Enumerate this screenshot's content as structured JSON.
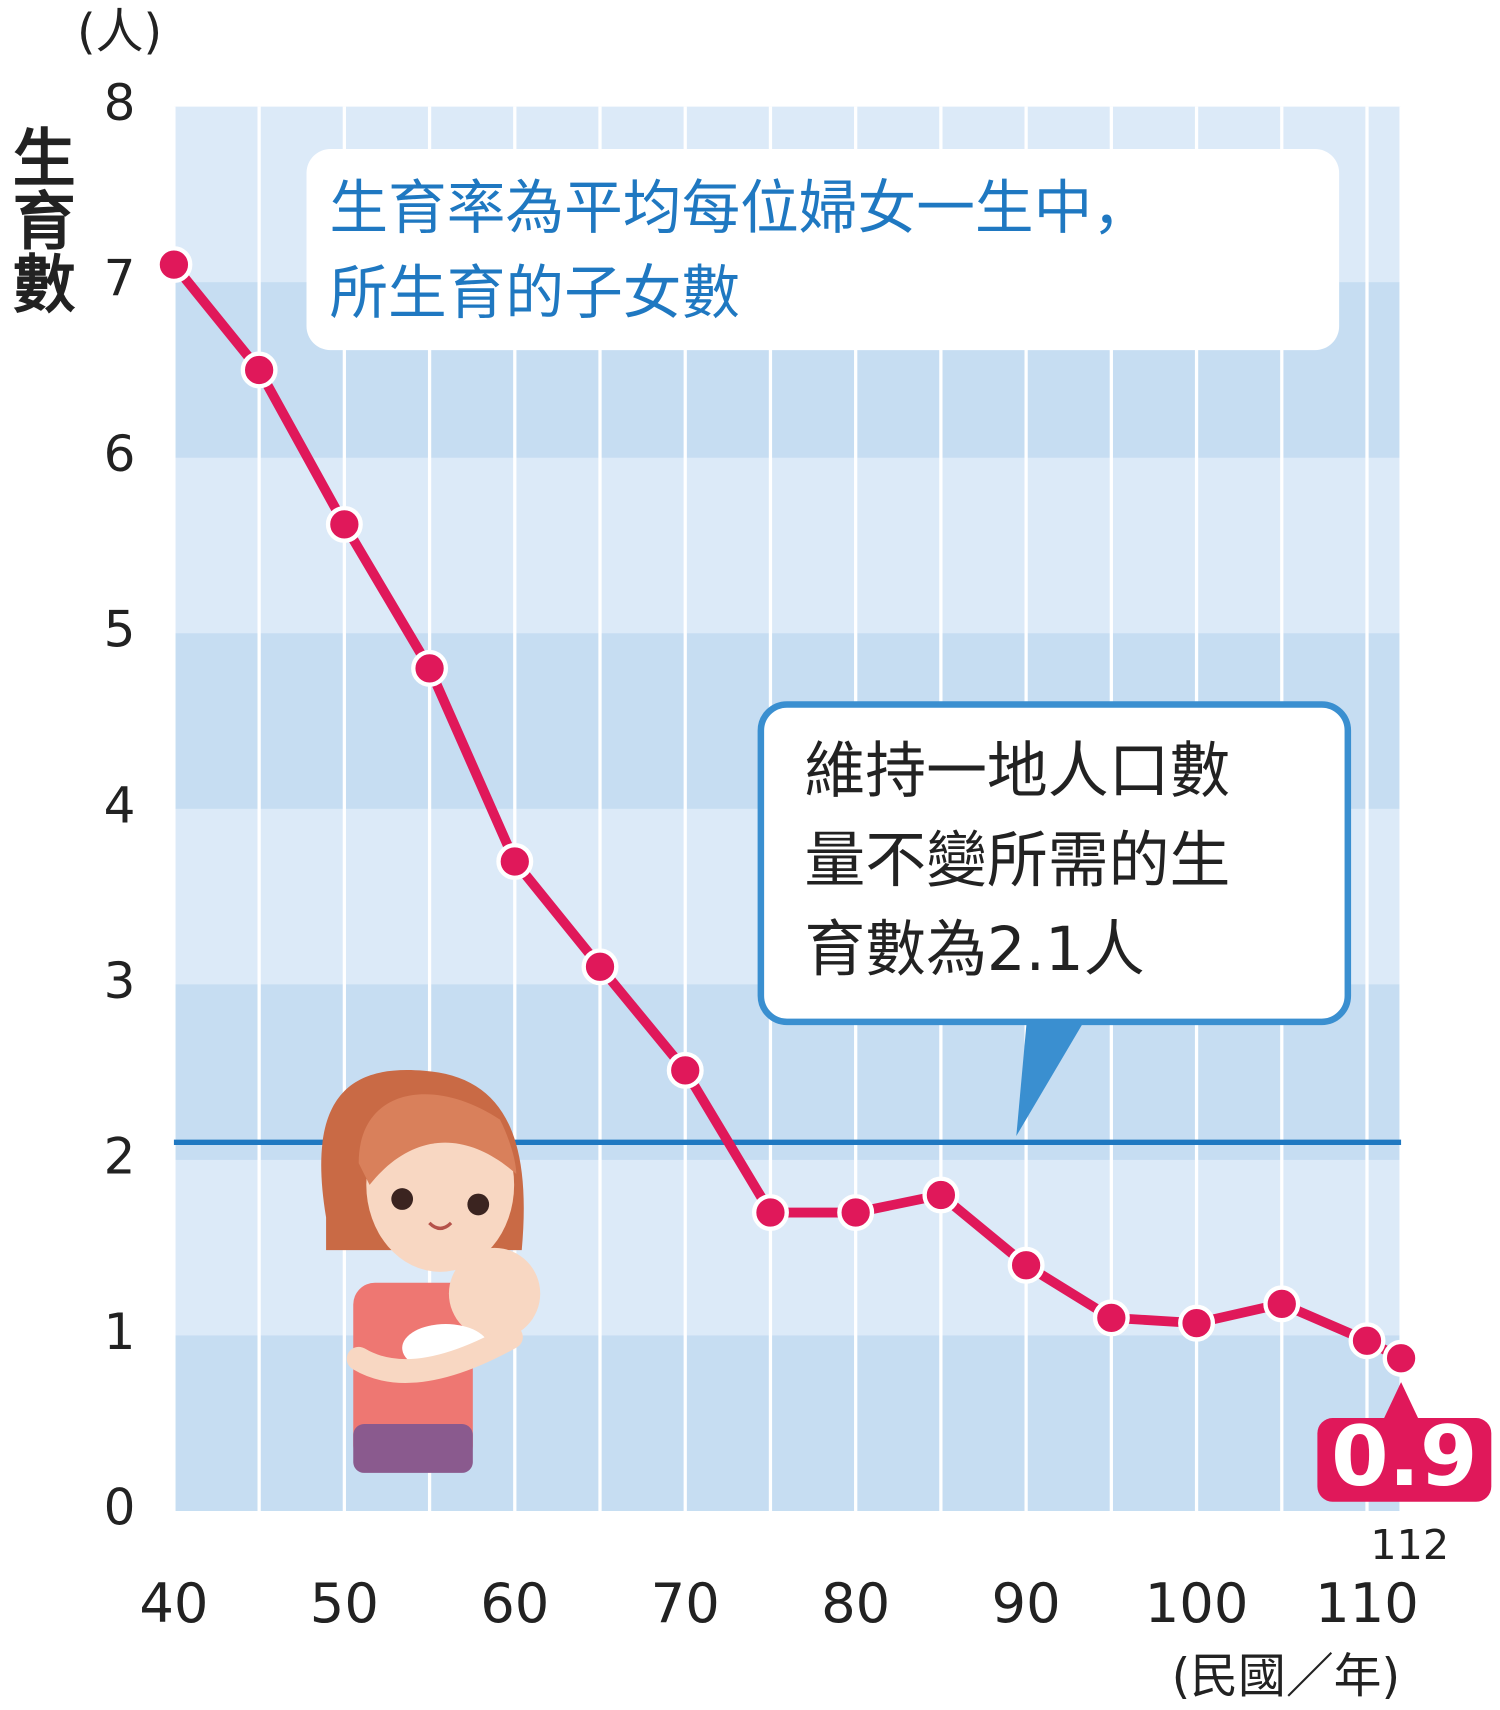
{
  "chart_data": {
    "type": "line",
    "y_label": "生育數",
    "y_unit": "(人)",
    "x_unit": "(民國／年)",
    "x": [
      40,
      45,
      50,
      55,
      60,
      65,
      70,
      75,
      80,
      85,
      90,
      95,
      100,
      105,
      110,
      112
    ],
    "series": [
      {
        "name": "生育數",
        "color": "#e0185a",
        "values": [
          7.1,
          6.5,
          5.62,
          4.8,
          3.7,
          3.1,
          2.51,
          1.7,
          1.7,
          1.8,
          1.4,
          1.1,
          1.07,
          1.18,
          0.97,
          0.87
        ],
        "value_labels": [
          null,
          null,
          null,
          null,
          null,
          null,
          null,
          null,
          null,
          null,
          null,
          null,
          null,
          null,
          null,
          "0.9"
        ]
      }
    ],
    "xlim": [
      40,
      112
    ],
    "ylim": [
      0,
      8
    ],
    "xticks": [
      40,
      50,
      60,
      70,
      80,
      90,
      100,
      110,
      112
    ],
    "yticks": [
      0,
      1,
      2,
      3,
      4,
      5,
      6,
      7,
      8
    ],
    "reference_line": {
      "value": 2.1,
      "color": "#1f78c1"
    },
    "annotations": [
      {
        "lines": [
          "生育率為平均每位婦女一生中，",
          "所生育的子女數"
        ]
      },
      {
        "lines": [
          "維持一地人口數",
          "量不變所需的生",
          "育數為2.1人"
        ]
      }
    ],
    "grid": true
  }
}
